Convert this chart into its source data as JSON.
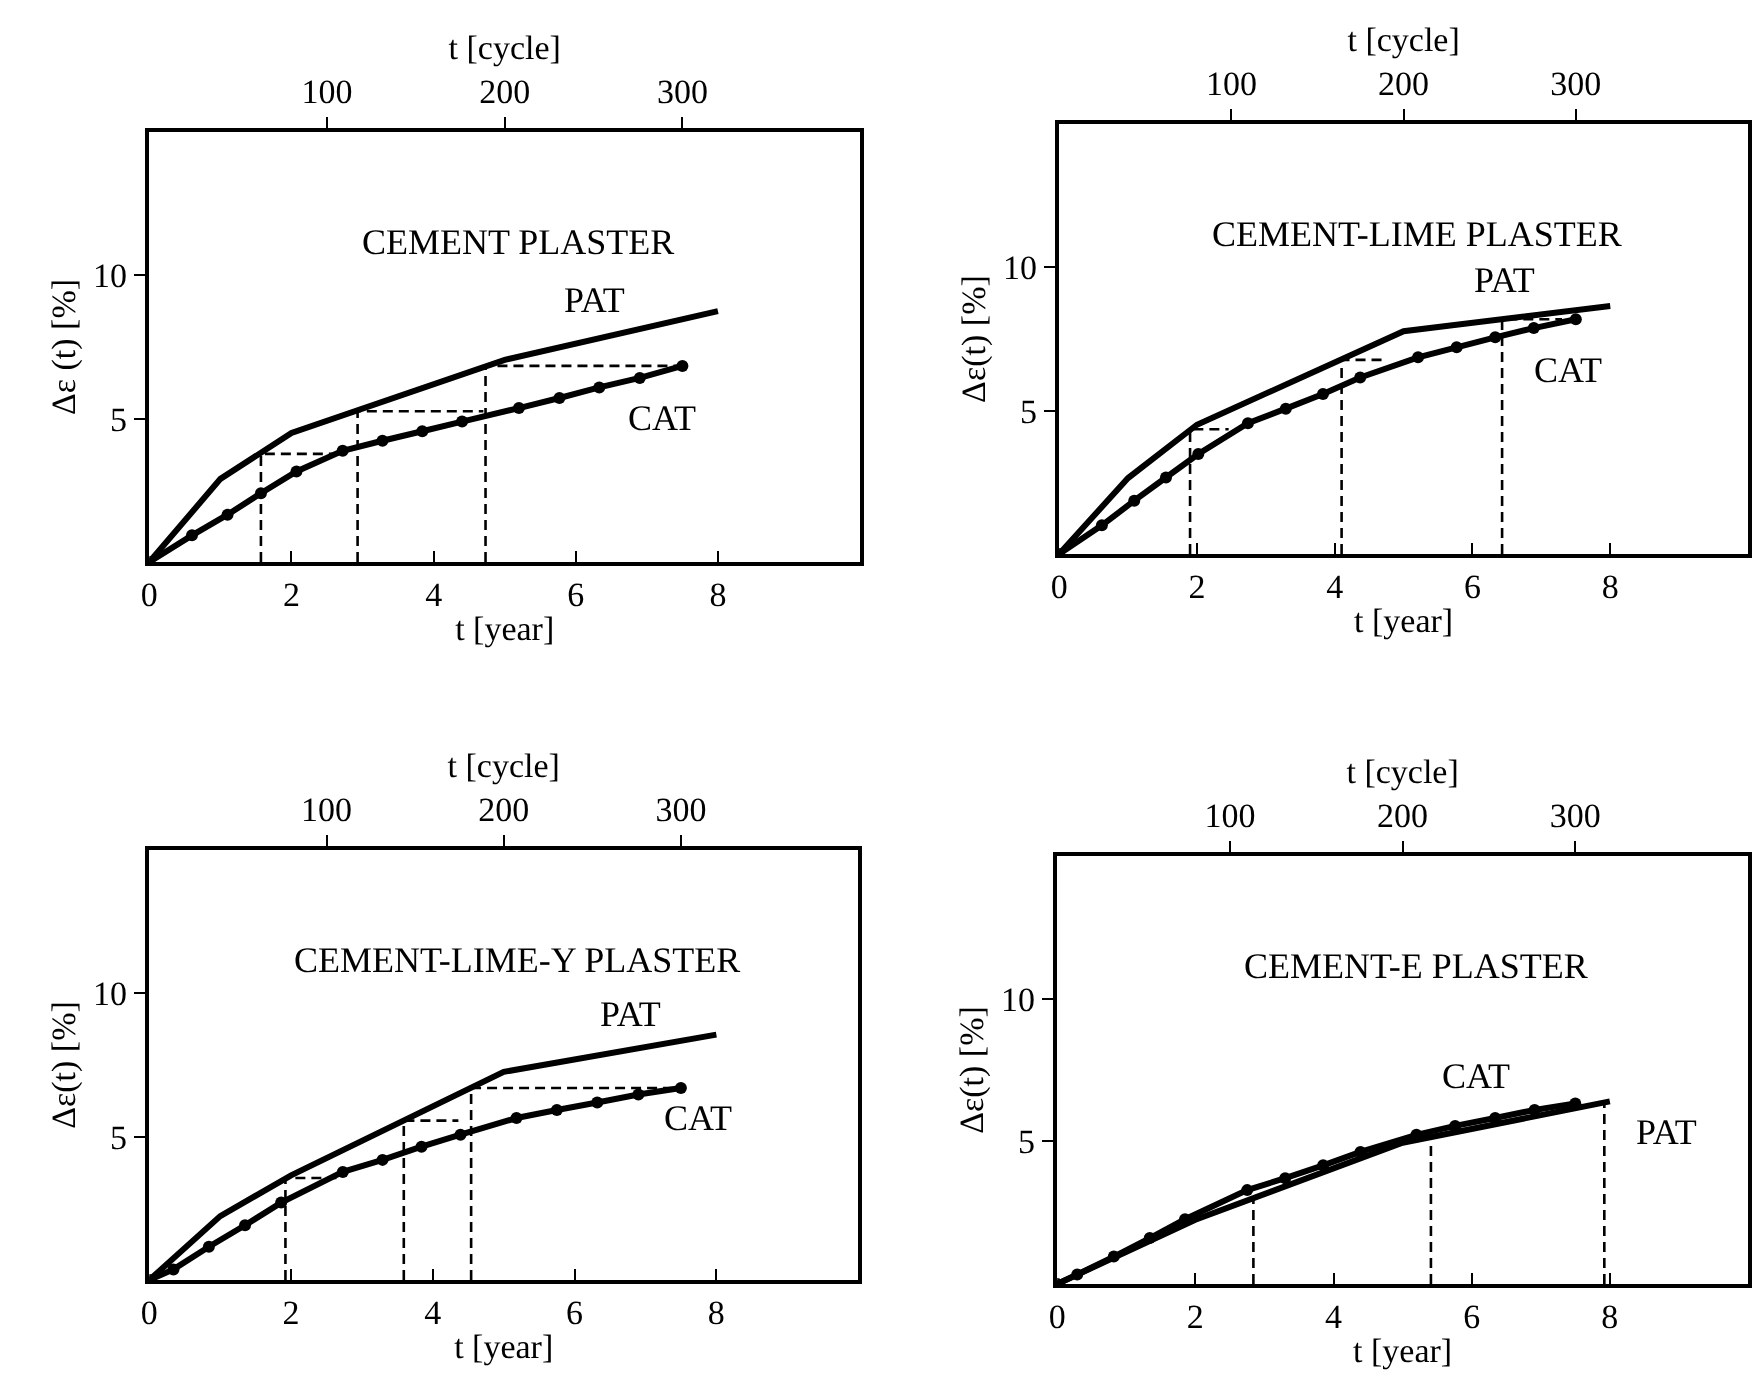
{
  "chart_data": [
    {
      "type": "line",
      "title": "CEMENT PLASTER",
      "xlabel": "t [year]",
      "x2label": "t [cycle]",
      "ylabel": "Δε (t) [%]",
      "xlim": [
        0,
        10
      ],
      "xticks": [
        0,
        2,
        4,
        6,
        8
      ],
      "x2lim": [
        0,
        400
      ],
      "x2ticks": [
        100,
        200,
        300
      ],
      "ylim": [
        0,
        15
      ],
      "yticks": [
        5,
        10
      ],
      "series": [
        {
          "color": "#000000",
          "marker": "none",
          "line_style": "solid",
          "x": [
            0,
            1.0,
            2.0,
            5.0,
            8.0
          ],
          "values": [
            0,
            2.9,
            4.5,
            7.05,
            8.75
          ]
        },
        {
          "color": "#000000",
          "marker": "circle",
          "line_style": "solid",
          "x": [
            0,
            0.6,
            1.1,
            1.57,
            2.07,
            2.72,
            3.28,
            3.84,
            4.4,
            5.2,
            5.77,
            6.33,
            6.9,
            7.5
          ],
          "values": [
            0,
            0.93,
            1.65,
            2.4,
            3.16,
            3.88,
            4.23,
            4.56,
            4.9,
            5.37,
            5.72,
            6.09,
            6.42,
            6.84
          ]
        },
        {
          "color": "#000000",
          "marker": "none",
          "line_style": "dashed",
          "x": [
            1.57,
            1.57,
            2.7
          ],
          "values": [
            0,
            3.77,
            3.77
          ]
        },
        {
          "color": "#000000",
          "marker": "none",
          "line_style": "dashed",
          "x": [
            2.93,
            2.93,
            4.7
          ],
          "values": [
            0,
            5.26,
            5.26
          ]
        },
        {
          "color": "#000000",
          "marker": "none",
          "line_style": "dashed",
          "x": [
            4.73,
            4.73,
            7.5
          ],
          "values": [
            0,
            6.84,
            6.84
          ]
        }
      ],
      "annotations": [
        "PAT",
        "CAT"
      ]
    },
    {
      "type": "line",
      "title": "CEMENT-LIME PLASTER",
      "xlabel": "t [year]",
      "x2label": "t [cycle]",
      "ylabel": "Δε(t) [%]",
      "xlim": [
        0,
        10
      ],
      "xticks": [
        0,
        2,
        4,
        6,
        8
      ],
      "x2lim": [
        0,
        400
      ],
      "x2ticks": [
        100,
        200,
        300
      ],
      "ylim": [
        0,
        15
      ],
      "yticks": [
        5,
        10
      ],
      "series": [
        {
          "color": "#000000",
          "marker": "none",
          "line_style": "solid",
          "x": [
            0,
            1.0,
            2.0,
            5.0,
            8.0
          ],
          "values": [
            0,
            2.65,
            4.51,
            7.77,
            8.65
          ]
        },
        {
          "color": "#000000",
          "marker": "circle",
          "line_style": "solid",
          "x": [
            0,
            0.62,
            1.09,
            1.55,
            2.02,
            2.74,
            3.29,
            3.83,
            4.37,
            5.21,
            5.77,
            6.33,
            6.89,
            7.5
          ],
          "values": [
            0,
            1.0,
            1.86,
            2.67,
            3.49,
            4.56,
            5.07,
            5.58,
            6.16,
            6.86,
            7.21,
            7.56,
            7.88,
            8.19
          ]
        },
        {
          "color": "#000000",
          "marker": "none",
          "line_style": "dashed",
          "x": [
            1.9,
            1.9,
            2.46
          ],
          "values": [
            0,
            4.35,
            4.35
          ]
        },
        {
          "color": "#000000",
          "marker": "none",
          "line_style": "dashed",
          "x": [
            4.1,
            4.1,
            4.7
          ],
          "values": [
            0,
            6.77,
            6.77
          ]
        },
        {
          "color": "#000000",
          "marker": "none",
          "line_style": "dashed",
          "x": [
            6.43,
            6.43,
            7.3
          ],
          "values": [
            0,
            8.19,
            8.19
          ]
        }
      ],
      "annotations": [
        "PAT",
        "CAT"
      ]
    },
    {
      "type": "line",
      "title": "CEMENT-LIME-Y PLASTER",
      "xlabel": "t [year]",
      "x2label": "t [cycle]",
      "ylabel": "Δε(t) [%]",
      "xlim": [
        0,
        10
      ],
      "xticks": [
        0,
        2,
        4,
        6,
        8
      ],
      "x2lim": [
        0,
        400
      ],
      "x2ticks": [
        100,
        200,
        300
      ],
      "ylim": [
        0,
        15
      ],
      "yticks": [
        5,
        10
      ],
      "series": [
        {
          "color": "#000000",
          "marker": "none",
          "line_style": "solid",
          "x": [
            0,
            1.0,
            2.0,
            5.0,
            8.0
          ],
          "values": [
            0,
            2.23,
            3.65,
            7.26,
            8.56
          ]
        },
        {
          "color": "#000000",
          "marker": "circle",
          "line_style": "solid",
          "x": [
            0,
            0.34,
            0.84,
            1.35,
            1.86,
            2.73,
            3.29,
            3.84,
            4.39,
            5.18,
            5.75,
            6.32,
            6.9,
            7.5
          ],
          "values": [
            0,
            0.37,
            1.16,
            1.91,
            2.7,
            3.77,
            4.19,
            4.65,
            5.07,
            5.65,
            5.93,
            6.19,
            6.47,
            6.7
          ]
        },
        {
          "color": "#000000",
          "marker": "none",
          "line_style": "dashed",
          "x": [
            1.92,
            1.92,
            2.64
          ],
          "values": [
            0,
            3.56,
            3.56
          ]
        },
        {
          "color": "#000000",
          "marker": "none",
          "line_style": "dashed",
          "x": [
            3.59,
            3.59,
            4.36
          ],
          "values": [
            0,
            5.56,
            5.56
          ]
        },
        {
          "color": "#000000",
          "marker": "none",
          "line_style": "dashed",
          "x": [
            4.54,
            4.54,
            7.5
          ],
          "values": [
            0,
            6.7,
            6.7
          ]
        }
      ],
      "annotations": [
        "PAT",
        "CAT"
      ]
    },
    {
      "type": "line",
      "title": "CEMENT-E PLASTER",
      "xlabel": "t [year]",
      "x2label": "t [cycle]",
      "ylabel": "Δε(t) [%]",
      "xlim": [
        0,
        10
      ],
      "xticks": [
        0,
        2,
        4,
        6,
        8
      ],
      "x2lim": [
        0,
        400
      ],
      "x2ticks": [
        100,
        200,
        300
      ],
      "ylim": [
        0,
        15
      ],
      "yticks": [
        5,
        10
      ],
      "series": [
        {
          "color": "#000000",
          "marker": "none",
          "line_style": "solid",
          "x": [
            0,
            2.0,
            5.0,
            8.0
          ],
          "values": [
            0,
            2.25,
            4.95,
            6.4
          ]
        },
        {
          "color": "#000000",
          "marker": "circle",
          "line_style": "solid",
          "x": [
            0,
            0.29,
            0.82,
            1.34,
            1.85,
            2.75,
            3.3,
            3.85,
            4.39,
            5.2,
            5.76,
            6.34,
            6.91,
            7.5
          ],
          "values": [
            0,
            0.33,
            0.96,
            1.61,
            2.27,
            3.29,
            3.71,
            4.16,
            4.63,
            5.23,
            5.54,
            5.82,
            6.1,
            6.33
          ]
        },
        {
          "color": "#000000",
          "marker": "none",
          "line_style": "dashed",
          "x": [
            2.84,
            2.84
          ],
          "values": [
            0,
            3.0
          ]
        },
        {
          "color": "#000000",
          "marker": "none",
          "line_style": "dashed",
          "x": [
            5.41,
            5.41
          ],
          "values": [
            0,
            5.2
          ]
        },
        {
          "color": "#000000",
          "marker": "none",
          "line_style": "dashed",
          "x": [
            7.92,
            7.92
          ],
          "values": [
            0,
            6.4
          ]
        }
      ],
      "annotations": [
        "CAT",
        "PAT"
      ]
    }
  ]
}
